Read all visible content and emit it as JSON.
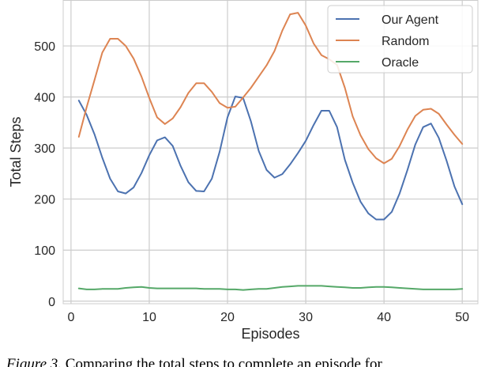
{
  "chart_data": {
    "type": "line",
    "xlabel": "Episodes",
    "ylabel": "Total Steps",
    "xlim": [
      -1,
      52
    ],
    "ylim": [
      -5,
      590
    ],
    "xticks": [
      0,
      10,
      20,
      30,
      40,
      50
    ],
    "yticks": [
      0,
      100,
      200,
      300,
      400,
      500
    ],
    "grid": true,
    "legend_position": "top-right",
    "x": [
      1,
      2,
      3,
      4,
      5,
      6,
      7,
      8,
      9,
      10,
      11,
      12,
      13,
      14,
      15,
      16,
      17,
      18,
      19,
      20,
      21,
      22,
      23,
      24,
      25,
      26,
      27,
      28,
      29,
      30,
      31,
      32,
      33,
      34,
      35,
      36,
      37,
      38,
      39,
      40,
      41,
      42,
      43,
      44,
      45,
      46,
      47,
      48,
      49,
      50
    ],
    "series": [
      {
        "name": "Our Agent",
        "color": "#4c72b0",
        "values": [
          393,
          365,
          327,
          281,
          240,
          215,
          211,
          223,
          251,
          286,
          315,
          321,
          304,
          265,
          233,
          216,
          215,
          240,
          293,
          360,
          401,
          398,
          352,
          294,
          257,
          242,
          249,
          268,
          290,
          314,
          345,
          373,
          373,
          341,
          277,
          232,
          195,
          172,
          160,
          160,
          175,
          211,
          257,
          307,
          341,
          348,
          320,
          275,
          225,
          190
        ]
      },
      {
        "name": "Random",
        "color": "#dd8452",
        "values": [
          322,
          380,
          433,
          487,
          514,
          514,
          500,
          475,
          440,
          398,
          360,
          347,
          358,
          380,
          408,
          427,
          427,
          410,
          388,
          379,
          381,
          399,
          418,
          440,
          462,
          490,
          530,
          562,
          565,
          540,
          505,
          482,
          474,
          463,
          418,
          362,
          325,
          298,
          280,
          270,
          279,
          304,
          336,
          363,
          375,
          377,
          367,
          346,
          326,
          308
        ]
      },
      {
        "name": "Oracle",
        "color": "#55a868",
        "values": [
          25,
          23,
          23,
          24,
          24,
          24,
          26,
          27,
          28,
          26,
          25,
          25,
          25,
          25,
          25,
          25,
          24,
          24,
          24,
          23,
          23,
          22,
          23,
          24,
          24,
          26,
          28,
          29,
          30,
          30,
          30,
          30,
          29,
          28,
          27,
          26,
          26,
          27,
          28,
          28,
          27,
          26,
          25,
          24,
          23,
          23,
          23,
          23,
          23,
          24
        ]
      }
    ]
  },
  "caption": {
    "label": "Figure 3.",
    "text": " Comparing the total steps to complete an episode for"
  }
}
